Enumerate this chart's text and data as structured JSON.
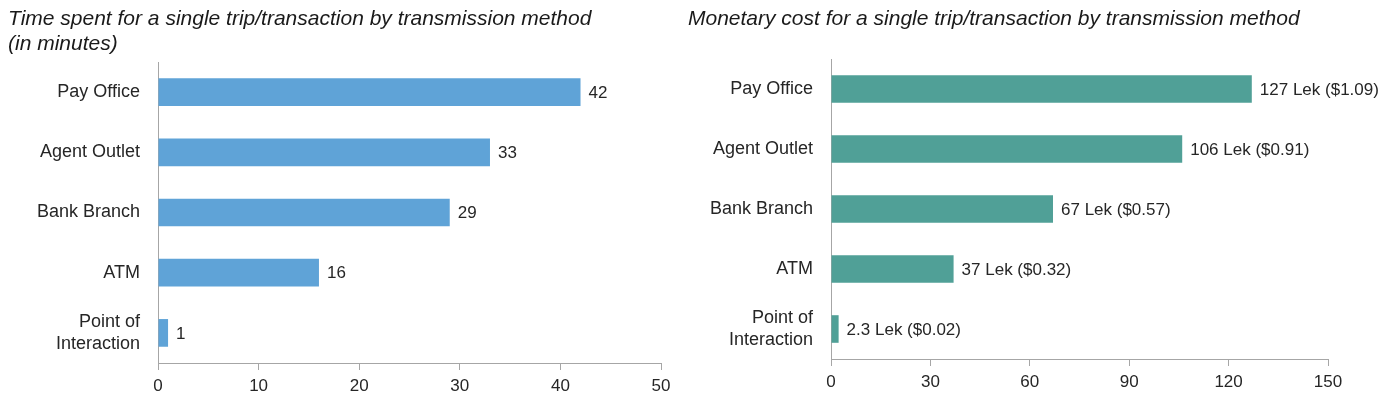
{
  "chart_data": [
    {
      "type": "bar",
      "orientation": "horizontal",
      "title": "Time spent for a single trip/transaction by transmission method (in minutes)",
      "categories": [
        "Pay Office",
        "Agent Outlet",
        "Bank Branch",
        "ATM",
        "Point of Interaction"
      ],
      "values": [
        42,
        33,
        29,
        16,
        1
      ],
      "color": "#5fa3d7",
      "xlim": [
        0,
        50
      ],
      "xticks": [
        0,
        10,
        20,
        30,
        40,
        50
      ],
      "data_labels": true
    },
    {
      "type": "bar",
      "orientation": "horizontal",
      "title": "Monetary cost for a single trip/transaction by transmission method",
      "categories": [
        "Pay Office",
        "Agent Outlet",
        "Bank Branch",
        "ATM",
        "Point of Interaction"
      ],
      "values": [
        127,
        106,
        67,
        37,
        2.3
      ],
      "color": "#50a097",
      "xlim": [
        0,
        150
      ],
      "xticks": [
        0,
        30,
        60,
        90,
        120,
        150
      ],
      "value_labels": [
        "127 Lek ($1.09)",
        "106 Lek ($0.91)",
        "67 Lek ($0.57)",
        "37 Lek ($0.32)",
        "2.3 Lek ($0.02)"
      ]
    }
  ]
}
